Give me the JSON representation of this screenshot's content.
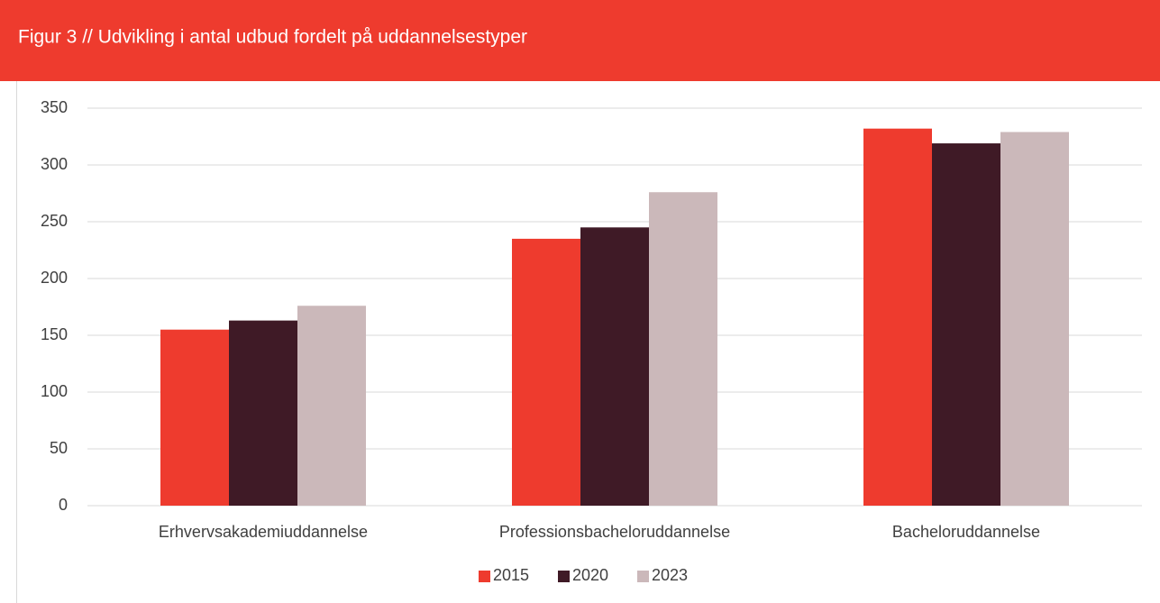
{
  "chart_data": {
    "type": "bar",
    "title": "Figur 3 // Udvikling i antal udbud fordelt på uddannelsestyper",
    "categories": [
      "Erhvervsakademiuddannelse",
      "Professionsbacheloruddannelse",
      "Bacheloruddannelse"
    ],
    "series": [
      {
        "name": "2015",
        "color": "#ee3b2e",
        "values": [
          155,
          235,
          332
        ]
      },
      {
        "name": "2020",
        "color": "#3f1a26",
        "values": [
          163,
          245,
          319
        ]
      },
      {
        "name": "2023",
        "color": "#cbb8ba",
        "values": [
          176,
          276,
          329
        ]
      }
    ],
    "ylim": [
      0,
      350
    ],
    "yticks": [
      0,
      50,
      100,
      150,
      200,
      250,
      300,
      350
    ],
    "grid": true,
    "legend": "bottom"
  }
}
